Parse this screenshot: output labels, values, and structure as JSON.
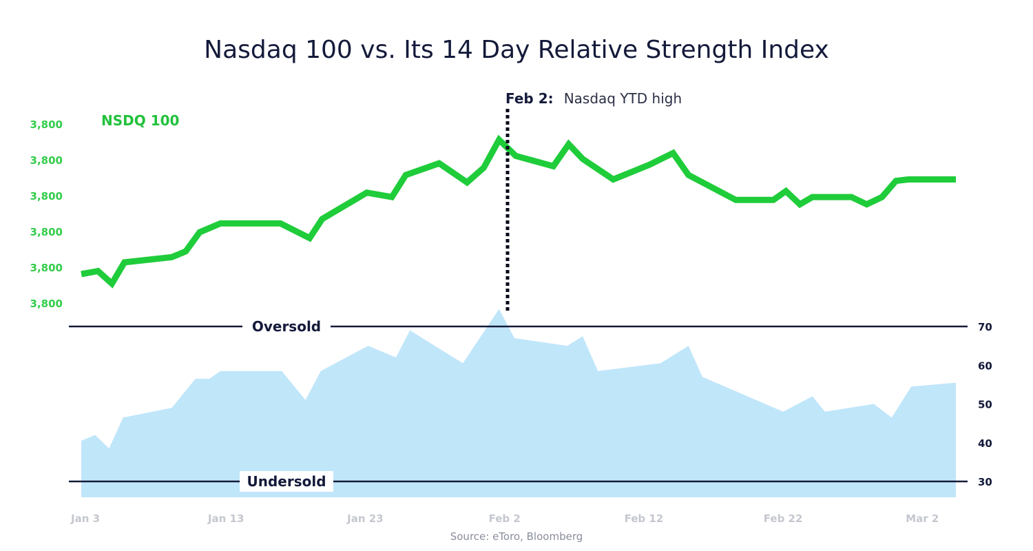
{
  "chart_data": {
    "type": "line",
    "title": "Nasdaq 100 vs. Its 14 Day Relative Strength Index",
    "source": "Source: eToro, Bloomberg",
    "legend": {
      "label": "NSDQ 100",
      "color": "#22c13c"
    },
    "annotation": {
      "date_label": "Feb 2:",
      "text": "Nasdaq YTD high"
    },
    "x_ticks": [
      "Jan 3",
      "Jan 13",
      "Jan 23",
      "Feb 2",
      "Feb 12",
      "Feb 22",
      "Mar 2"
    ],
    "x_tick_days": [
      0,
      10,
      20,
      30,
      40,
      50,
      60
    ],
    "x_range_days": [
      0,
      63
    ],
    "left_axis_ticks": [
      "3,800",
      "3,800",
      "3,800",
      "3,800",
      "3,800",
      "3,800"
    ],
    "right_axis_ticks": [
      "70",
      "60",
      "50",
      "40",
      "30"
    ],
    "right_axis_values": [
      70,
      60,
      50,
      40,
      30
    ],
    "oversold": {
      "label": "Oversold",
      "value": 70
    },
    "undersold": {
      "label": "Undersold",
      "value": 30
    },
    "colors": {
      "price_line": "#1fcc3a",
      "rsi_area": "#c0e6fa",
      "green_text": "#33cc4a",
      "dark": "#141a3a",
      "axis_gray": "#c4c7cf"
    },
    "series": [
      {
        "name": "NSDQ 100",
        "kind": "line",
        "x": [
          0,
          1.2,
          2.2,
          3.1,
          6.5,
          7.5,
          8.5,
          10,
          14.3,
          16.4,
          17.3,
          20.5,
          22.3,
          23.3,
          25.7,
          27.7,
          28.9,
          30,
          31.2,
          33.9,
          35,
          36,
          38.2,
          40.8,
          42.5,
          43.6,
          47,
          49.7,
          50.6,
          51.6,
          52.5,
          55.3,
          56.4,
          57.5,
          58.5,
          59.4,
          62.8
        ],
        "y": [
          8.5,
          10.5,
          2,
          16.5,
          20,
          24,
          37,
          43,
          43,
          33,
          46,
          64,
          61,
          76,
          84,
          71,
          81,
          100,
          89,
          82,
          97,
          87,
          73,
          83,
          91,
          76,
          59,
          59,
          65,
          56,
          61,
          61,
          56,
          61,
          72,
          73,
          73
        ]
      },
      {
        "name": "RSI",
        "kind": "area",
        "x": [
          0,
          1,
          2,
          3,
          6.5,
          8.2,
          9.2,
          10,
          14.4,
          16.1,
          17.2,
          20.6,
          22.6,
          23.6,
          27.4,
          30,
          31.1,
          34.9,
          36,
          37.1,
          41.6,
          43.6,
          44.6,
          50.4,
          52.5,
          53.4,
          56.9,
          58.2,
          59.6,
          62.8
        ],
        "y": [
          40.5,
          42,
          38.5,
          46.5,
          49,
          56.5,
          56.5,
          58.5,
          58.5,
          51,
          58.5,
          65,
          62,
          69,
          60.5,
          74.5,
          67,
          65,
          67.5,
          58.5,
          60.5,
          65,
          57,
          48,
          52,
          48,
          50,
          46.5,
          54.5,
          55.5
        ]
      }
    ]
  }
}
